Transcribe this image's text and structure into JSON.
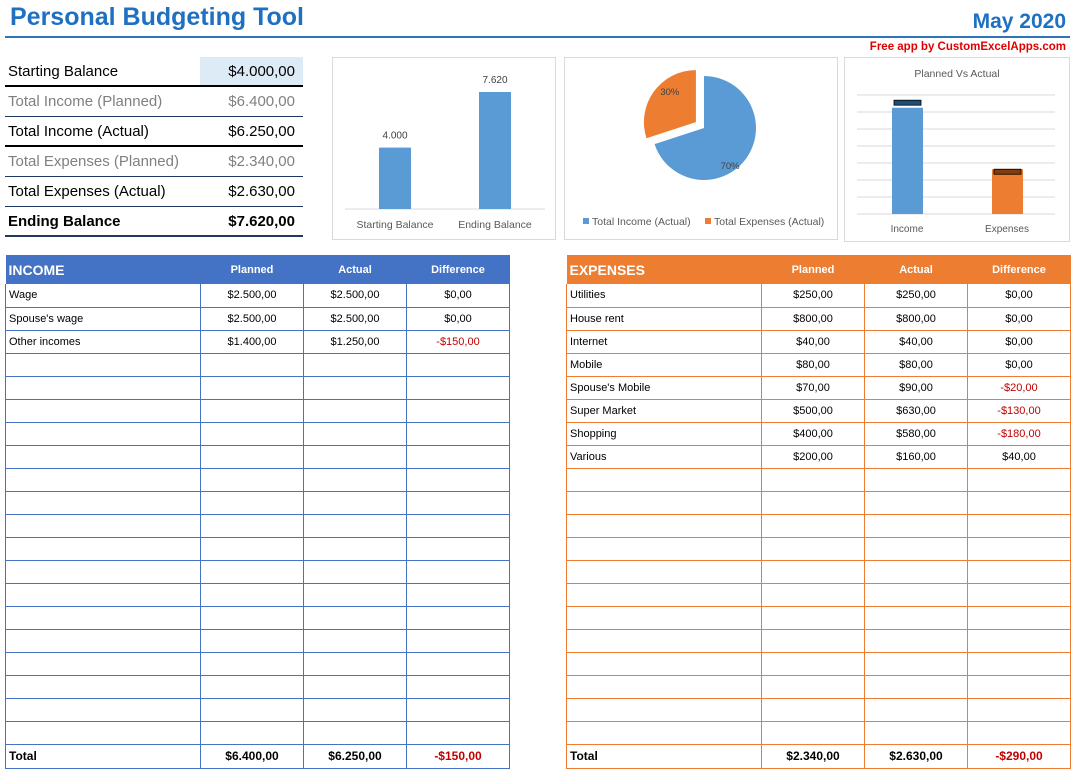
{
  "header": {
    "title": "Personal Budgeting Tool",
    "month": "May 2020",
    "credit": "Free app by CustomExcelApps.com"
  },
  "summary": [
    {
      "label": "Starting Balance",
      "value": "$4.000,00",
      "style": "normal"
    },
    {
      "label": "Total Income (Planned)",
      "value": "$6.400,00",
      "style": "grey"
    },
    {
      "label": "Total Income (Actual)",
      "value": "$6.250,00",
      "style": "normal"
    },
    {
      "label": "Total Expenses (Planned)",
      "value": "$2.340,00",
      "style": "grey"
    },
    {
      "label": "Total Expenses (Actual)",
      "value": "$2.630,00",
      "style": "normal"
    },
    {
      "label": "Ending Balance",
      "value": "$7.620,00",
      "style": "bold"
    }
  ],
  "colors": {
    "income": "#5b9bd5",
    "expenses": "#ed7d31",
    "income_header": "#4472c4",
    "title": "#1f70c1",
    "negative": "#c00000",
    "starting_highlight": "#ddebf7"
  },
  "chart_data": [
    {
      "type": "bar",
      "categories": [
        "Starting Balance",
        "Ending Balance"
      ],
      "values": [
        4000,
        7620
      ],
      "data_labels": [
        "4.000",
        "7.620"
      ],
      "ylim": [
        0,
        7620
      ]
    },
    {
      "type": "pie",
      "labels": [
        "Total Income (Actual)",
        "Total Expenses (Actual)"
      ],
      "values": [
        70,
        30
      ],
      "data_labels": [
        "70%",
        "30%"
      ],
      "legend": "bottom",
      "exploded": "Total Expenses (Actual)"
    },
    {
      "type": "bar",
      "title": "Planned Vs Actual",
      "categories": [
        "Income",
        "Expenses"
      ],
      "series": [
        {
          "values": [
            6250,
            2630
          ]
        },
        {
          "values": [
            6400,
            2340
          ]
        }
      ],
      "ylim": [
        0,
        7000
      ],
      "grid": true
    }
  ],
  "income": {
    "title": "INCOME",
    "columns": [
      "Planned",
      "Actual",
      "Difference"
    ],
    "rows": [
      [
        "Wage",
        "$2.500,00",
        "$2.500,00",
        "$0,00"
      ],
      [
        "Spouse's wage",
        "$2.500,00",
        "$2.500,00",
        "$0,00"
      ],
      [
        "Other incomes",
        "$1.400,00",
        "$1.250,00",
        "-$150,00"
      ]
    ],
    "total": [
      "Total",
      "$6.400,00",
      "$6.250,00",
      "-$150,00"
    ]
  },
  "expenses": {
    "title": "EXPENSES",
    "columns": [
      "Planned",
      "Actual",
      "Difference"
    ],
    "rows": [
      [
        "Utilities",
        "$250,00",
        "$250,00",
        "$0,00"
      ],
      [
        "House rent",
        "$800,00",
        "$800,00",
        "$0,00"
      ],
      [
        "Internet",
        "$40,00",
        "$40,00",
        "$0,00"
      ],
      [
        "Mobile",
        "$80,00",
        "$80,00",
        "$0,00"
      ],
      [
        "Spouse's Mobile",
        "$70,00",
        "$90,00",
        "-$20,00"
      ],
      [
        "Super Market",
        "$500,00",
        "$630,00",
        "-$130,00"
      ],
      [
        "Shopping",
        "$400,00",
        "$580,00",
        "-$180,00"
      ],
      [
        "Various",
        "$200,00",
        "$160,00",
        "$40,00"
      ]
    ],
    "total": [
      "Total",
      "$2.340,00",
      "$2.630,00",
      "-$290,00"
    ]
  }
}
